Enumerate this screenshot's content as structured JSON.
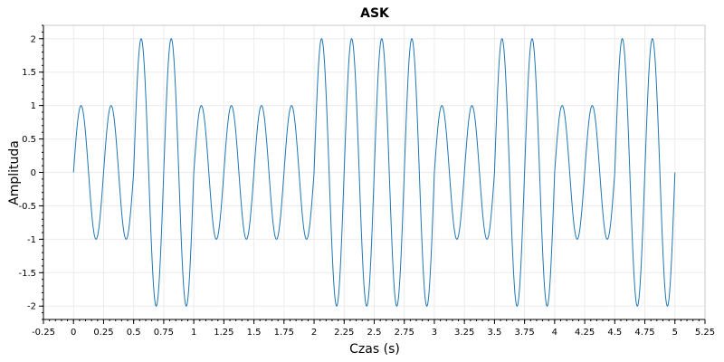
{
  "chart_data": {
    "type": "line",
    "title": "ASK",
    "xlabel": "Czas (s)",
    "ylabel": "Amplituda",
    "xlim": [
      -0.25,
      5.25
    ],
    "ylim": [
      -2.2,
      2.2
    ],
    "grid": true,
    "x_ticks": [
      -0.25,
      0,
      0.25,
      0.5,
      0.75,
      1,
      1.25,
      1.5,
      1.75,
      2,
      2.25,
      2.5,
      2.75,
      3,
      3.25,
      3.5,
      3.75,
      4,
      4.25,
      4.5,
      4.75,
      5,
      5.25
    ],
    "x_tick_labels": [
      "-0.25",
      "0",
      "0.25",
      "0.5",
      "0.75",
      "1",
      "1.25",
      "1.5",
      "1.75",
      "2",
      "2.25",
      "2.5",
      "2.75",
      "3",
      "3.25",
      "3.5",
      "3.75",
      "4",
      "4.25",
      "4.5",
      "4.75",
      "5",
      "5.25"
    ],
    "y_ticks": [
      -2,
      -1.5,
      -1,
      -0.5,
      0,
      0.5,
      1,
      1.5,
      2
    ],
    "y_tick_labels": [
      "-2",
      "-1.5",
      "-1",
      "-0.5",
      "0",
      "0.5",
      "1",
      "1.5",
      "2"
    ],
    "series": [
      {
        "color": "#1f77b4",
        "carrier_frequency_hz": 4,
        "bit_duration_s": 0.5,
        "bits": [
          0,
          1,
          0,
          0,
          1,
          1,
          0,
          1,
          0,
          1
        ],
        "amplitude_for_0": 1,
        "amplitude_for_1": 2,
        "x_start": 0,
        "x_end": 5
      }
    ]
  }
}
